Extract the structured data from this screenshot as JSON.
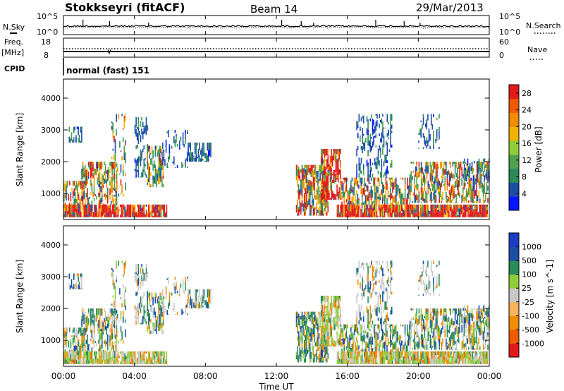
{
  "header": {
    "station": "Stokkseyri (fitACF)",
    "beam": "Beam 14",
    "date": "29/Mar/2013"
  },
  "left_labels": {
    "nsky": "N.Sky",
    "freq_line1": "Freq.",
    "freq_line2": "[MHz]",
    "cpid": "CPID"
  },
  "right_labels": {
    "nsearch": "N.Search",
    "nave": "Nave"
  },
  "cpid_text": "normal (fast) 151",
  "colors": {
    "power_scale": [
      "#0018ff",
      "#1c4ea8",
      "#2a8a5a",
      "#4ea24e",
      "#8ccd3a",
      "#f0b400",
      "#f08c00",
      "#ee5a00",
      "#e11a1a"
    ],
    "velocity_scale": [
      "#e11a1a",
      "#ee5a00",
      "#f08c00",
      "#f7b25a",
      "#c8c8c8",
      "#8ccd3a",
      "#2a8a5a",
      "#1c4ea8",
      "#1b3fc4"
    ]
  },
  "chart_data": [
    {
      "type": "line",
      "panel": "noise",
      "series": [
        {
          "name": "N.Sky"
        },
        {
          "name": "N.Search"
        }
      ],
      "y_left_ticks": [
        "10^5",
        "10^0"
      ],
      "y_right_ticks": [
        "10^5",
        "10^0"
      ]
    },
    {
      "type": "line",
      "panel": "frequency",
      "series": [
        {
          "name": "Freq."
        },
        {
          "name": "Nave"
        }
      ],
      "y_left_ticks": [
        "18",
        "8"
      ],
      "y_right_ticks": [
        "60",
        "0"
      ],
      "freq_value_mhz": 10,
      "nave_value": 47
    },
    {
      "type": "heatmap",
      "panel": "power",
      "ylabel": "Slant Range [km]",
      "yticks": [
        1000,
        2000,
        3000,
        4000
      ],
      "ylim": [
        180,
        4600
      ],
      "colorbar_label": "Power [dB]",
      "colorbar_ticks": [
        4,
        8,
        12,
        16,
        20,
        24,
        28
      ],
      "colorbar_range": [
        0,
        30
      ]
    },
    {
      "type": "heatmap",
      "panel": "velocity",
      "ylabel": "Slant Range [km]",
      "yticks": [
        1000,
        2000,
        3000,
        4000
      ],
      "ylim": [
        180,
        4600
      ],
      "colorbar_label": "Velocity [m s^-1]",
      "colorbar_ticks": [
        "1000",
        "500",
        "100",
        "25",
        "-25",
        "-100",
        "-500",
        "-1000"
      ]
    },
    {
      "type": "axis",
      "xlabel": "Time UT",
      "xticks": [
        "00:00",
        "04:00",
        "08:00",
        "12:00",
        "16:00",
        "20:00",
        "00:00"
      ],
      "xlim_hours": [
        0,
        24
      ]
    }
  ]
}
